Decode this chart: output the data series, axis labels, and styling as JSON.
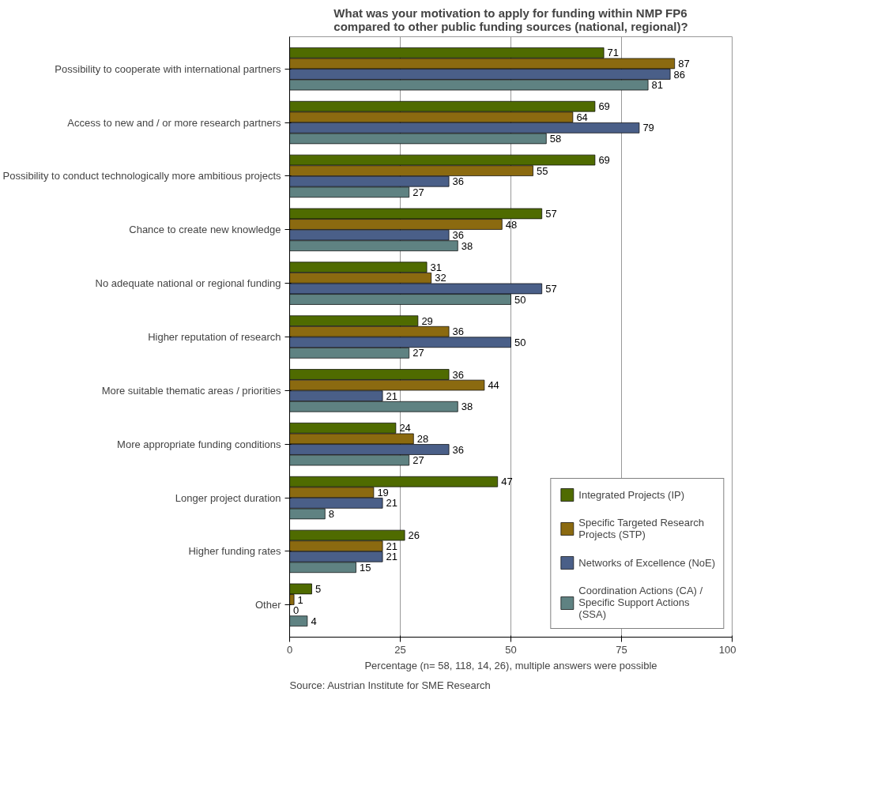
{
  "chart_data": {
    "type": "bar",
    "orientation": "horizontal",
    "title": "What was your motivation to apply for funding within NMP FP6 compared to other public funding sources (national, regional)?",
    "xlabel": "Percentage (n= 58, 118, 14, 26), multiple answers were possible",
    "categories": [
      "Possibility to cooperate with international partners",
      "Access to new and / or more research partners",
      "Possibility to conduct technologically more ambitious projects",
      "Chance to create new knowledge",
      "No adequate national or regional funding",
      "Higher reputation of research",
      "More suitable thematic areas / priorities",
      "More appropriate funding conditions",
      "Longer project duration",
      "Higher funding rates",
      "Other"
    ],
    "series": [
      {
        "name": "Integrated Projects (IP)",
        "color": "#4f6b00",
        "values": [
          71,
          69,
          69,
          57,
          31,
          29,
          36,
          24,
          47,
          26,
          5
        ]
      },
      {
        "name": "Specific Targeted Research Projects (STP)",
        "color": "#8b6a10",
        "values": [
          87,
          64,
          55,
          48,
          32,
          36,
          44,
          28,
          19,
          21,
          1
        ]
      },
      {
        "name": "Networks of Excellence (NoE)",
        "color": "#4a5f88",
        "values": [
          86,
          79,
          36,
          36,
          57,
          50,
          21,
          36,
          21,
          21,
          0
        ]
      },
      {
        "name": "Coordination Actions (CA) / Specific Support Actions (SSA)",
        "color": "#5f8282",
        "values": [
          81,
          58,
          27,
          38,
          50,
          27,
          38,
          27,
          8,
          15,
          4
        ]
      }
    ],
    "xlim": [
      0,
      100
    ],
    "xticks": [
      0,
      25,
      50,
      75,
      100
    ],
    "grid": "x",
    "legend": "bottom right",
    "data_labels": true,
    "annotations": [
      "Source: Austrian Institute for SME Research"
    ]
  }
}
